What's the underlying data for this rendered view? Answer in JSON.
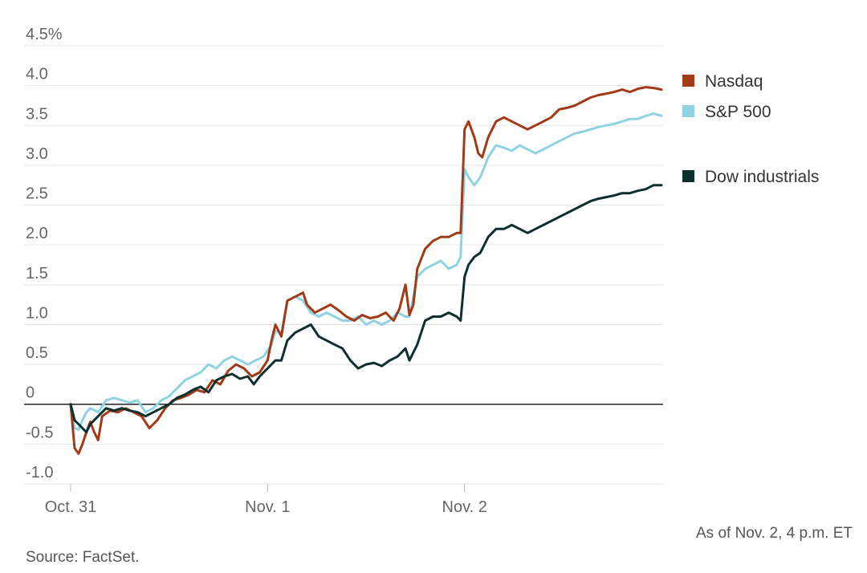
{
  "chart_data": {
    "type": "line",
    "ylim": [
      -1.0,
      4.5
    ],
    "y_ticks": [
      "4.5%",
      "4.0",
      "3.5",
      "3.0",
      "2.5",
      "2.0",
      "1.5",
      "1.0",
      "0.5",
      "0",
      "-0.5",
      "-1.0"
    ],
    "y_tick_values": [
      4.5,
      4.0,
      3.5,
      3.0,
      2.5,
      2.0,
      1.5,
      1.0,
      0.5,
      0,
      -0.5,
      -1.0
    ],
    "x_ticks": [
      "Oct. 31",
      "Nov. 1",
      "Nov. 2"
    ],
    "x_tick_values": [
      0,
      1,
      2
    ],
    "xlim": [
      0,
      3
    ],
    "grid": true,
    "legend_position": "right",
    "series": [
      {
        "name": "Nasdaq",
        "color": "#a13a16",
        "points": [
          [
            0.0,
            0.0
          ],
          [
            0.02,
            -0.55
          ],
          [
            0.04,
            -0.62
          ],
          [
            0.06,
            -0.5
          ],
          [
            0.08,
            -0.35
          ],
          [
            0.1,
            -0.22
          ],
          [
            0.12,
            -0.35
          ],
          [
            0.14,
            -0.45
          ],
          [
            0.16,
            -0.15
          ],
          [
            0.2,
            -0.08
          ],
          [
            0.24,
            -0.1
          ],
          [
            0.28,
            -0.05
          ],
          [
            0.32,
            -0.1
          ],
          [
            0.36,
            -0.15
          ],
          [
            0.4,
            -0.3
          ],
          [
            0.44,
            -0.2
          ],
          [
            0.48,
            -0.05
          ],
          [
            0.52,
            0.05
          ],
          [
            0.56,
            0.08
          ],
          [
            0.6,
            0.12
          ],
          [
            0.64,
            0.18
          ],
          [
            0.68,
            0.15
          ],
          [
            0.72,
            0.3
          ],
          [
            0.76,
            0.25
          ],
          [
            0.8,
            0.42
          ],
          [
            0.84,
            0.5
          ],
          [
            0.88,
            0.45
          ],
          [
            0.92,
            0.35
          ],
          [
            0.96,
            0.4
          ],
          [
            1.0,
            0.55
          ],
          [
            1.02,
            0.8
          ],
          [
            1.04,
            1.0
          ],
          [
            1.07,
            0.85
          ],
          [
            1.1,
            1.3
          ],
          [
            1.14,
            1.35
          ],
          [
            1.18,
            1.4
          ],
          [
            1.2,
            1.25
          ],
          [
            1.24,
            1.15
          ],
          [
            1.28,
            1.2
          ],
          [
            1.32,
            1.25
          ],
          [
            1.36,
            1.18
          ],
          [
            1.4,
            1.1
          ],
          [
            1.44,
            1.05
          ],
          [
            1.48,
            1.12
          ],
          [
            1.52,
            1.08
          ],
          [
            1.56,
            1.1
          ],
          [
            1.6,
            1.15
          ],
          [
            1.64,
            1.05
          ],
          [
            1.67,
            1.2
          ],
          [
            1.7,
            1.5
          ],
          [
            1.72,
            1.12
          ],
          [
            1.74,
            1.25
          ],
          [
            1.76,
            1.7
          ],
          [
            1.8,
            1.95
          ],
          [
            1.84,
            2.05
          ],
          [
            1.88,
            2.1
          ],
          [
            1.92,
            2.1
          ],
          [
            1.96,
            2.15
          ],
          [
            1.98,
            2.15
          ],
          [
            2.0,
            3.45
          ],
          [
            2.02,
            3.55
          ],
          [
            2.05,
            3.35
          ],
          [
            2.07,
            3.15
          ],
          [
            2.09,
            3.1
          ],
          [
            2.12,
            3.35
          ],
          [
            2.16,
            3.55
          ],
          [
            2.2,
            3.6
          ],
          [
            2.24,
            3.55
          ],
          [
            2.28,
            3.5
          ],
          [
            2.32,
            3.45
          ],
          [
            2.36,
            3.5
          ],
          [
            2.4,
            3.55
          ],
          [
            2.44,
            3.6
          ],
          [
            2.48,
            3.7
          ],
          [
            2.52,
            3.72
          ],
          [
            2.56,
            3.75
          ],
          [
            2.6,
            3.8
          ],
          [
            2.64,
            3.85
          ],
          [
            2.68,
            3.88
          ],
          [
            2.72,
            3.9
          ],
          [
            2.76,
            3.92
          ],
          [
            2.8,
            3.95
          ],
          [
            2.84,
            3.92
          ],
          [
            2.88,
            3.96
          ],
          [
            2.92,
            3.98
          ],
          [
            2.96,
            3.97
          ],
          [
            3.0,
            3.95
          ]
        ]
      },
      {
        "name": "S&P 500",
        "color": "#8fd3e2",
        "points": [
          [
            0.0,
            0.0
          ],
          [
            0.02,
            -0.3
          ],
          [
            0.04,
            -0.32
          ],
          [
            0.06,
            -0.2
          ],
          [
            0.08,
            -0.1
          ],
          [
            0.1,
            -0.05
          ],
          [
            0.14,
            -0.1
          ],
          [
            0.18,
            0.05
          ],
          [
            0.22,
            0.08
          ],
          [
            0.26,
            0.05
          ],
          [
            0.3,
            0.02
          ],
          [
            0.34,
            0.05
          ],
          [
            0.38,
            -0.1
          ],
          [
            0.42,
            -0.05
          ],
          [
            0.46,
            0.05
          ],
          [
            0.5,
            0.1
          ],
          [
            0.54,
            0.2
          ],
          [
            0.58,
            0.3
          ],
          [
            0.62,
            0.35
          ],
          [
            0.66,
            0.4
          ],
          [
            0.7,
            0.5
          ],
          [
            0.74,
            0.45
          ],
          [
            0.78,
            0.55
          ],
          [
            0.82,
            0.6
          ],
          [
            0.86,
            0.55
          ],
          [
            0.9,
            0.5
          ],
          [
            0.94,
            0.55
          ],
          [
            0.98,
            0.6
          ],
          [
            1.02,
            0.75
          ],
          [
            1.04,
            0.92
          ],
          [
            1.07,
            0.9
          ],
          [
            1.1,
            1.3
          ],
          [
            1.14,
            1.35
          ],
          [
            1.18,
            1.3
          ],
          [
            1.22,
            1.15
          ],
          [
            1.26,
            1.1
          ],
          [
            1.3,
            1.15
          ],
          [
            1.34,
            1.1
          ],
          [
            1.38,
            1.05
          ],
          [
            1.42,
            1.05
          ],
          [
            1.46,
            1.1
          ],
          [
            1.5,
            1.0
          ],
          [
            1.54,
            1.05
          ],
          [
            1.58,
            1.0
          ],
          [
            1.62,
            1.05
          ],
          [
            1.66,
            1.15
          ],
          [
            1.7,
            1.1
          ],
          [
            1.72,
            1.1
          ],
          [
            1.76,
            1.6
          ],
          [
            1.8,
            1.7
          ],
          [
            1.84,
            1.75
          ],
          [
            1.88,
            1.8
          ],
          [
            1.92,
            1.7
          ],
          [
            1.96,
            1.75
          ],
          [
            1.98,
            1.85
          ],
          [
            2.0,
            2.95
          ],
          [
            2.02,
            2.85
          ],
          [
            2.05,
            2.75
          ],
          [
            2.08,
            2.85
          ],
          [
            2.12,
            3.1
          ],
          [
            2.16,
            3.25
          ],
          [
            2.2,
            3.22
          ],
          [
            2.24,
            3.18
          ],
          [
            2.28,
            3.25
          ],
          [
            2.32,
            3.2
          ],
          [
            2.36,
            3.15
          ],
          [
            2.4,
            3.2
          ],
          [
            2.44,
            3.25
          ],
          [
            2.48,
            3.3
          ],
          [
            2.52,
            3.35
          ],
          [
            2.56,
            3.4
          ],
          [
            2.6,
            3.42
          ],
          [
            2.64,
            3.45
          ],
          [
            2.68,
            3.48
          ],
          [
            2.72,
            3.5
          ],
          [
            2.76,
            3.52
          ],
          [
            2.8,
            3.55
          ],
          [
            2.84,
            3.58
          ],
          [
            2.88,
            3.58
          ],
          [
            2.92,
            3.62
          ],
          [
            2.96,
            3.65
          ],
          [
            3.0,
            3.62
          ]
        ]
      },
      {
        "name": "Dow industrials",
        "color": "#0d2f2f",
        "points": [
          [
            0.0,
            0.0
          ],
          [
            0.02,
            -0.2
          ],
          [
            0.04,
            -0.25
          ],
          [
            0.06,
            -0.3
          ],
          [
            0.08,
            -0.35
          ],
          [
            0.1,
            -0.25
          ],
          [
            0.14,
            -0.15
          ],
          [
            0.18,
            -0.05
          ],
          [
            0.22,
            -0.08
          ],
          [
            0.26,
            -0.05
          ],
          [
            0.3,
            -0.08
          ],
          [
            0.34,
            -0.1
          ],
          [
            0.38,
            -0.15
          ],
          [
            0.42,
            -0.1
          ],
          [
            0.46,
            -0.05
          ],
          [
            0.5,
            0.0
          ],
          [
            0.54,
            0.08
          ],
          [
            0.58,
            0.12
          ],
          [
            0.62,
            0.18
          ],
          [
            0.66,
            0.22
          ],
          [
            0.7,
            0.15
          ],
          [
            0.74,
            0.3
          ],
          [
            0.78,
            0.35
          ],
          [
            0.82,
            0.38
          ],
          [
            0.86,
            0.32
          ],
          [
            0.9,
            0.35
          ],
          [
            0.93,
            0.25
          ],
          [
            0.96,
            0.35
          ],
          [
            1.0,
            0.45
          ],
          [
            1.04,
            0.55
          ],
          [
            1.07,
            0.55
          ],
          [
            1.1,
            0.8
          ],
          [
            1.14,
            0.9
          ],
          [
            1.18,
            0.95
          ],
          [
            1.22,
            1.0
          ],
          [
            1.26,
            0.85
          ],
          [
            1.3,
            0.8
          ],
          [
            1.34,
            0.75
          ],
          [
            1.38,
            0.7
          ],
          [
            1.42,
            0.55
          ],
          [
            1.46,
            0.45
          ],
          [
            1.5,
            0.5
          ],
          [
            1.54,
            0.52
          ],
          [
            1.58,
            0.48
          ],
          [
            1.62,
            0.55
          ],
          [
            1.66,
            0.6
          ],
          [
            1.7,
            0.7
          ],
          [
            1.72,
            0.55
          ],
          [
            1.76,
            0.75
          ],
          [
            1.8,
            1.05
          ],
          [
            1.84,
            1.1
          ],
          [
            1.88,
            1.1
          ],
          [
            1.92,
            1.15
          ],
          [
            1.96,
            1.1
          ],
          [
            1.98,
            1.05
          ],
          [
            2.0,
            1.6
          ],
          [
            2.02,
            1.75
          ],
          [
            2.05,
            1.85
          ],
          [
            2.08,
            1.9
          ],
          [
            2.12,
            2.1
          ],
          [
            2.16,
            2.2
          ],
          [
            2.2,
            2.2
          ],
          [
            2.24,
            2.25
          ],
          [
            2.28,
            2.2
          ],
          [
            2.32,
            2.15
          ],
          [
            2.36,
            2.2
          ],
          [
            2.4,
            2.25
          ],
          [
            2.44,
            2.3
          ],
          [
            2.48,
            2.35
          ],
          [
            2.52,
            2.4
          ],
          [
            2.56,
            2.45
          ],
          [
            2.6,
            2.5
          ],
          [
            2.64,
            2.55
          ],
          [
            2.68,
            2.58
          ],
          [
            2.72,
            2.6
          ],
          [
            2.76,
            2.62
          ],
          [
            2.8,
            2.65
          ],
          [
            2.84,
            2.65
          ],
          [
            2.88,
            2.68
          ],
          [
            2.92,
            2.7
          ],
          [
            2.96,
            2.75
          ],
          [
            3.0,
            2.75
          ]
        ]
      }
    ],
    "note": "As of Nov. 2, 4 p.m. ET",
    "source": "Source: FactSet."
  }
}
